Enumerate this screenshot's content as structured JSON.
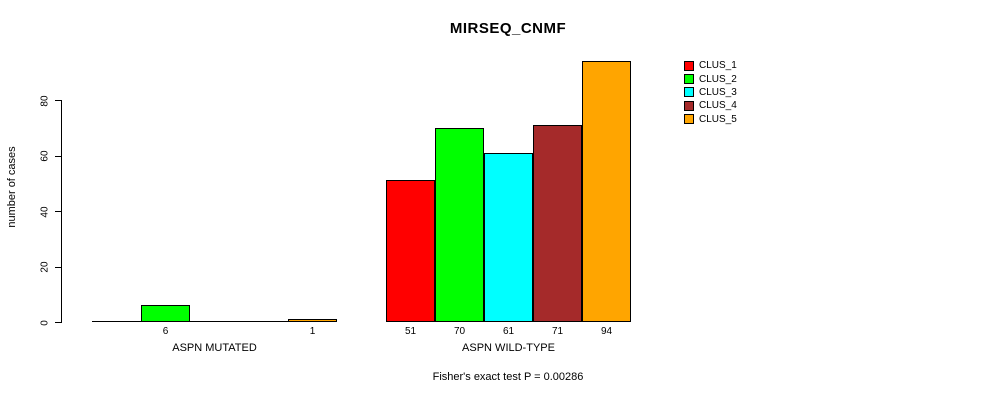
{
  "chart_data": {
    "type": "bar",
    "title": "MIRSEQ_CNMF",
    "ylabel": "number of cases",
    "xlabel": "",
    "caption": "Fisher's exact test P = 0.00286",
    "categories": [
      "ASPN MUTATED",
      "ASPN WILD-TYPE"
    ],
    "series": [
      {
        "name": "CLUS_1",
        "color": "#FF0000",
        "values": [
          0,
          51
        ]
      },
      {
        "name": "CLUS_2",
        "color": "#00FF00",
        "values": [
          6,
          70
        ]
      },
      {
        "name": "CLUS_3",
        "color": "#00FFFF",
        "values": [
          0,
          61
        ]
      },
      {
        "name": "CLUS_4",
        "color": "#A52A2A",
        "values": [
          0,
          71
        ]
      },
      {
        "name": "CLUS_5",
        "color": "#FFA500",
        "values": [
          1,
          94
        ]
      }
    ],
    "value_labels": [
      [
        "",
        "6",
        "",
        "",
        "1"
      ],
      [
        "51",
        "70",
        "61",
        "71",
        "94"
      ]
    ],
    "y_ticks": [
      0,
      20,
      40,
      60,
      80
    ],
    "ylim": [
      0,
      94
    ],
    "grid": false,
    "legend_position": "right",
    "axis_color": "#000000",
    "background_color": "#FFFFFF"
  }
}
